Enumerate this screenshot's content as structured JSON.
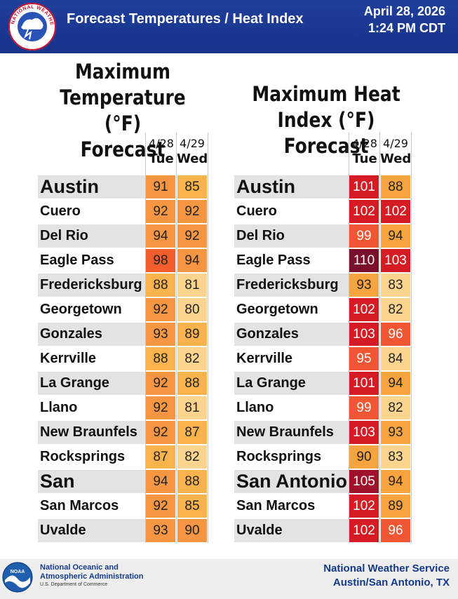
{
  "header": {
    "title": "Forecast Temperatures / Heat Index",
    "date": "April 28, 2026",
    "time": "1:24 PM CDT",
    "logo_text": "NATIONAL WEATHER SERVICE"
  },
  "left_panel": {
    "title_lines": [
      "Maximum",
      "Temperature (°F)",
      "Forecast"
    ],
    "columns": [
      {
        "date": "4/28",
        "day": "Tue"
      },
      {
        "date": "4/29",
        "day": "Wed"
      }
    ]
  },
  "right_panel": {
    "title_lines": [
      "Maximum Heat",
      "Index (°F) Forecast"
    ],
    "columns": [
      {
        "date": "4/28",
        "day": "Tue"
      },
      {
        "date": "4/29",
        "day": "Wed"
      }
    ]
  },
  "cities": [
    "Austin",
    "Cuero",
    "Del Rio",
    "Eagle Pass",
    "Fredericksburg",
    "Georgetown",
    "Gonzales",
    "Kerrville",
    "La Grange",
    "Llano",
    "New Braunfels",
    "Rocksprings",
    "San Antonio",
    "San Marcos",
    "Uvalde"
  ],
  "big_cities": [
    "Austin",
    "San Antonio"
  ],
  "max_temp": [
    [
      91,
      85
    ],
    [
      92,
      92
    ],
    [
      94,
      92
    ],
    [
      98,
      94
    ],
    [
      88,
      81
    ],
    [
      92,
      80
    ],
    [
      93,
      89
    ],
    [
      88,
      82
    ],
    [
      92,
      88
    ],
    [
      92,
      81
    ],
    [
      92,
      87
    ],
    [
      87,
      82
    ],
    [
      94,
      88
    ],
    [
      92,
      85
    ],
    [
      93,
      90
    ]
  ],
  "heat_index": [
    [
      101,
      88
    ],
    [
      102,
      102
    ],
    [
      99,
      94
    ],
    [
      110,
      103
    ],
    [
      93,
      83
    ],
    [
      102,
      82
    ],
    [
      103,
      96
    ],
    [
      95,
      84
    ],
    [
      101,
      94
    ],
    [
      99,
      82
    ],
    [
      103,
      93
    ],
    [
      90,
      83
    ],
    [
      105,
      94
    ],
    [
      102,
      89
    ],
    [
      102,
      96
    ]
  ],
  "colors": {
    "header_blue": "#1b3a94",
    "temp_80": "#fbd58d",
    "temp_85": "#f9b34c",
    "temp_90": "#f69542",
    "temp_95": "#f15e2b",
    "hi_82": "#fbd58d",
    "hi_90": "#f7a43f",
    "hi_95": "#f15632",
    "hi_100": "#d51b23",
    "hi_105": "#a0112b",
    "hi_110": "#7a0e2b"
  },
  "footer": {
    "noaa_line1": "National Oceanic and",
    "noaa_line2": "Atmospheric Administration",
    "noaa_sub": "U.S. Department of Commerce",
    "noaa_logo_text": "NOAA",
    "nws_line1": "National Weather Service",
    "nws_line2": "Austin/San Antonio, TX"
  }
}
